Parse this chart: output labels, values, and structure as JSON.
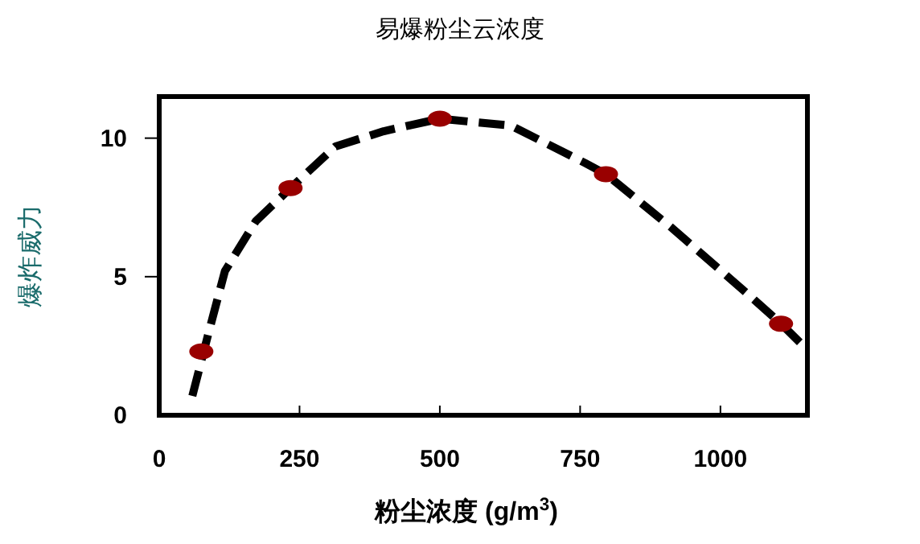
{
  "chart_data": {
    "type": "line",
    "title": "易爆粉尘云浓度",
    "xlabel": "粉尘浓度 (g/m$^{3}$)",
    "ylabel": "爆炸威力",
    "xlim": [
      0,
      1155
    ],
    "ylim": [
      0,
      11.5
    ],
    "xticks": [
      0,
      250,
      500,
      750,
      1000
    ],
    "yticks": [
      0,
      5,
      10
    ],
    "grid": false,
    "series": [
      {
        "color": "#000000",
        "line_style": "dashed",
        "marker": "none",
        "x": [
          59,
          87,
          117,
          172,
          234,
          314,
          400,
          500,
          627,
          759,
          796,
          911,
          1053,
          1108,
          1153
        ],
        "values": [
          0.7,
          2.9,
          5.2,
          7.0,
          8.2,
          9.7,
          10.25,
          10.7,
          10.45,
          9.1,
          8.7,
          6.8,
          4.3,
          3.3,
          2.4
        ]
      },
      {
        "type": "scatter",
        "color": "#990000",
        "marker": "circle",
        "x": [
          75,
          234,
          500,
          796,
          1108
        ],
        "values": [
          2.3,
          8.2,
          10.7,
          8.7,
          3.3
        ]
      }
    ]
  }
}
